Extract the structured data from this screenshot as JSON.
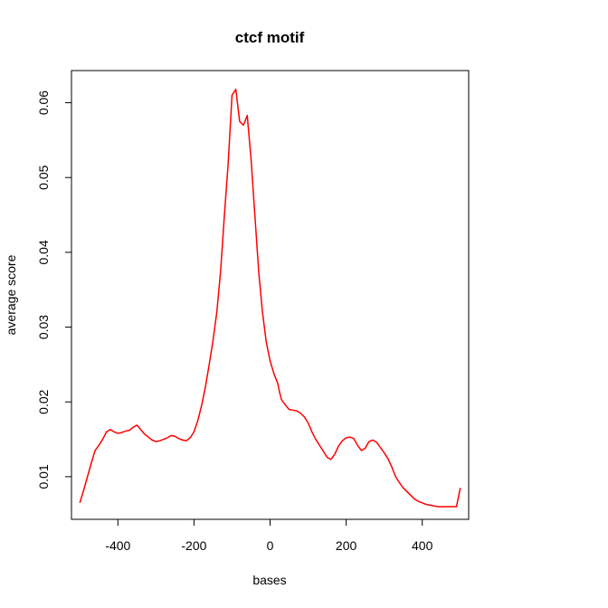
{
  "chart_data": {
    "type": "line",
    "title": "ctcf motif",
    "xlabel": "bases",
    "ylabel": "average score",
    "xlim": [
      -522,
      522
    ],
    "ylim": [
      0.0043,
      0.0643
    ],
    "x_ticks": [
      -400,
      -200,
      0,
      200,
      400
    ],
    "x_tick_labels": [
      "-400",
      "-200",
      "0",
      "200",
      "400"
    ],
    "y_ticks": [
      0.01,
      0.02,
      0.03,
      0.04,
      0.05,
      0.06
    ],
    "y_tick_labels": [
      "0.01",
      "0.02",
      "0.03",
      "0.04",
      "0.05",
      "0.06"
    ],
    "grid": false,
    "legend": "none",
    "series": [
      {
        "color": "#ff0000",
        "x": [
          -500,
          -490,
          -480,
          -470,
          -460,
          -450,
          -440,
          -430,
          -420,
          -410,
          -400,
          -390,
          -380,
          -370,
          -360,
          -350,
          -340,
          -330,
          -320,
          -310,
          -300,
          -290,
          -280,
          -270,
          -260,
          -250,
          -240,
          -230,
          -220,
          -210,
          -200,
          -190,
          -180,
          -170,
          -160,
          -150,
          -140,
          -130,
          -120,
          -110,
          -100,
          -90,
          -80,
          -70,
          -60,
          -50,
          -40,
          -30,
          -20,
          -10,
          0,
          10,
          20,
          25,
          30,
          40,
          50,
          60,
          70,
          80,
          90,
          100,
          110,
          120,
          130,
          140,
          150,
          160,
          170,
          180,
          190,
          200,
          210,
          220,
          230,
          240,
          250,
          260,
          270,
          280,
          290,
          300,
          310,
          320,
          330,
          340,
          350,
          360,
          370,
          380,
          390,
          400,
          410,
          420,
          430,
          440,
          450,
          460,
          470,
          480,
          490,
          500
        ],
        "y": [
          0.0065,
          0.0082,
          0.01,
          0.0118,
          0.0135,
          0.0142,
          0.015,
          0.016,
          0.0163,
          0.016,
          0.0158,
          0.0159,
          0.0161,
          0.0162,
          0.0166,
          0.0169,
          0.0163,
          0.0157,
          0.0153,
          0.0149,
          0.0147,
          0.0148,
          0.015,
          0.0152,
          0.0155,
          0.0154,
          0.0151,
          0.0149,
          0.0148,
          0.0152,
          0.016,
          0.0175,
          0.0195,
          0.022,
          0.025,
          0.0282,
          0.032,
          0.0375,
          0.045,
          0.052,
          0.061,
          0.0618,
          0.0575,
          0.057,
          0.0583,
          0.0525,
          0.045,
          0.0375,
          0.032,
          0.028,
          0.0255,
          0.0238,
          0.0225,
          0.0213,
          0.0203,
          0.0196,
          0.019,
          0.0189,
          0.0188,
          0.0185,
          0.018,
          0.0172,
          0.016,
          0.015,
          0.0142,
          0.0134,
          0.0126,
          0.0123,
          0.013,
          0.0141,
          0.0148,
          0.0152,
          0.0153,
          0.0151,
          0.0142,
          0.0135,
          0.0138,
          0.0147,
          0.0149,
          0.0146,
          0.0139,
          0.0132,
          0.0124,
          0.0113,
          0.01,
          0.0092,
          0.0085,
          0.008,
          0.0075,
          0.007,
          0.0067,
          0.0065,
          0.0063,
          0.0062,
          0.0061,
          0.006,
          0.006,
          0.006,
          0.006,
          0.006,
          0.006,
          0.0085
        ]
      }
    ]
  }
}
